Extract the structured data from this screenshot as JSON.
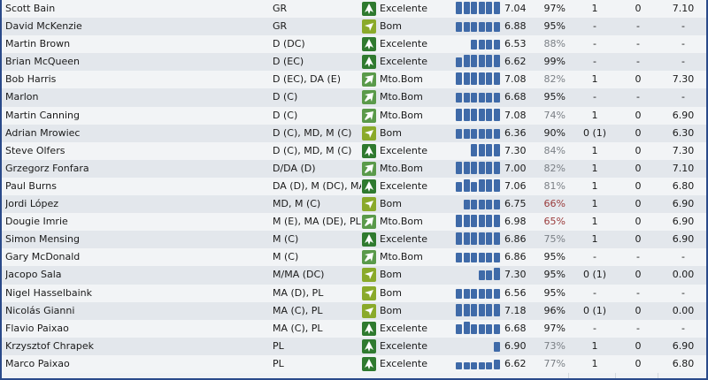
{
  "colors": {
    "excelente": "#2f7a2f",
    "mto_bom": "#5a9a4a",
    "bom": "#8aaa2a",
    "bars": "#3f6aa8",
    "condition_red": "#9a3b3b",
    "condition_grey": "#7a7f85"
  },
  "players": [
    {
      "name": "Scott Bain",
      "position": "GR",
      "status": "Excelente",
      "status_level": "excelente",
      "arrow": "up",
      "bars": [
        4,
        4,
        4,
        4,
        4,
        4
      ],
      "rating": "7.04",
      "condition": "97%",
      "condition_style": "normal",
      "c1": "1",
      "c2": "0",
      "c3": "7.10"
    },
    {
      "name": "David McKenzie",
      "position": "GR",
      "status": "Bom",
      "status_level": "bom",
      "arrow": "down",
      "bars": [
        3,
        3,
        3,
        3,
        3,
        3
      ],
      "rating": "6.88",
      "condition": "95%",
      "condition_style": "normal",
      "c1": "-",
      "c2": "-",
      "c3": "-"
    },
    {
      "name": "Martin Brown",
      "position": "D (DC)",
      "status": "Excelente",
      "status_level": "excelente",
      "arrow": "up",
      "bars": [
        0,
        0,
        3,
        3,
        3,
        3
      ],
      "rating": "6.53",
      "condition": "88%",
      "condition_style": "grey",
      "c1": "-",
      "c2": "-",
      "c3": "-"
    },
    {
      "name": "Brian McQueen",
      "position": "D (EC)",
      "status": "Excelente",
      "status_level": "excelente",
      "arrow": "up",
      "bars": [
        3,
        4,
        4,
        4,
        4,
        4
      ],
      "rating": "6.62",
      "condition": "99%",
      "condition_style": "normal",
      "c1": "-",
      "c2": "-",
      "c3": "-"
    },
    {
      "name": "Bob Harris",
      "position": "D (EC), DA (E)",
      "status": "Mto.Bom",
      "status_level": "mto_bom",
      "arrow": "upright",
      "bars": [
        4,
        4,
        4,
        4,
        4,
        4
      ],
      "rating": "7.08",
      "condition": "82%",
      "condition_style": "grey",
      "c1": "1",
      "c2": "0",
      "c3": "7.30"
    },
    {
      "name": "Marlon",
      "position": "D (C)",
      "status": "Mto.Bom",
      "status_level": "mto_bom",
      "arrow": "upright",
      "bars": [
        3,
        3,
        3,
        3,
        3,
        3
      ],
      "rating": "6.68",
      "condition": "95%",
      "condition_style": "normal",
      "c1": "-",
      "c2": "-",
      "c3": "-"
    },
    {
      "name": "Martin Canning",
      "position": "D (C)",
      "status": "Mto.Bom",
      "status_level": "mto_bom",
      "arrow": "upright",
      "bars": [
        4,
        4,
        4,
        4,
        4,
        4
      ],
      "rating": "7.08",
      "condition": "74%",
      "condition_style": "grey",
      "c1": "1",
      "c2": "0",
      "c3": "6.90"
    },
    {
      "name": "Adrian Mrowiec",
      "position": "D (C), MD, M (C)",
      "status": "Bom",
      "status_level": "bom",
      "arrow": "down",
      "bars": [
        3,
        3,
        3,
        3,
        3,
        3
      ],
      "rating": "6.36",
      "condition": "90%",
      "condition_style": "normal",
      "c1": "0 (1)",
      "c2": "0",
      "c3": "6.30"
    },
    {
      "name": "Steve Olfers",
      "position": "D (C), MD, M (C)",
      "status": "Excelente",
      "status_level": "excelente",
      "arrow": "up",
      "bars": [
        0,
        0,
        4,
        4,
        4,
        4
      ],
      "rating": "7.30",
      "condition": "84%",
      "condition_style": "grey",
      "c1": "1",
      "c2": "0",
      "c3": "7.30"
    },
    {
      "name": "Grzegorz Fonfara",
      "position": "D/DA (D)",
      "status": "Mto.Bom",
      "status_level": "mto_bom",
      "arrow": "upright",
      "bars": [
        4,
        4,
        4,
        4,
        4,
        4
      ],
      "rating": "7.00",
      "condition": "82%",
      "condition_style": "grey",
      "c1": "1",
      "c2": "0",
      "c3": "7.10"
    },
    {
      "name": "Paul Burns",
      "position": "DA (D), M (DC), MA ..",
      "status": "Excelente",
      "status_level": "excelente",
      "arrow": "up",
      "bars": [
        3,
        4,
        3,
        4,
        4,
        4
      ],
      "rating": "7.06",
      "condition": "81%",
      "condition_style": "grey",
      "c1": "1",
      "c2": "0",
      "c3": "6.80"
    },
    {
      "name": "Jordi López",
      "position": "MD, M (C)",
      "status": "Bom",
      "status_level": "bom",
      "arrow": "down",
      "bars": [
        0,
        3,
        3,
        3,
        3,
        3
      ],
      "rating": "6.75",
      "condition": "66%",
      "condition_style": "red",
      "c1": "1",
      "c2": "0",
      "c3": "6.90"
    },
    {
      "name": "Dougie Imrie",
      "position": "M (E), MA (DE), PL",
      "status": "Mto.Bom",
      "status_level": "mto_bom",
      "arrow": "upright",
      "bars": [
        4,
        4,
        4,
        4,
        4,
        4
      ],
      "rating": "6.98",
      "condition": "65%",
      "condition_style": "red",
      "c1": "1",
      "c2": "0",
      "c3": "6.90"
    },
    {
      "name": "Simon Mensing",
      "position": "M (C)",
      "status": "Excelente",
      "status_level": "excelente",
      "arrow": "up",
      "bars": [
        4,
        4,
        4,
        4,
        4,
        4
      ],
      "rating": "6.86",
      "condition": "75%",
      "condition_style": "grey",
      "c1": "1",
      "c2": "0",
      "c3": "6.90"
    },
    {
      "name": "Gary McDonald",
      "position": "M (C)",
      "status": "Mto.Bom",
      "status_level": "mto_bom",
      "arrow": "upright",
      "bars": [
        3,
        3,
        3,
        3,
        3,
        3
      ],
      "rating": "6.86",
      "condition": "95%",
      "condition_style": "normal",
      "c1": "-",
      "c2": "-",
      "c3": "-"
    },
    {
      "name": "Jacopo Sala",
      "position": "M/MA (DC)",
      "status": "Bom",
      "status_level": "bom",
      "arrow": "down",
      "bars": [
        0,
        0,
        0,
        3,
        3,
        4
      ],
      "rating": "7.30",
      "condition": "95%",
      "condition_style": "normal",
      "c1": "0 (1)",
      "c2": "0",
      "c3": "0.00"
    },
    {
      "name": "Nigel Hasselbaink",
      "position": "MA (D), PL",
      "status": "Bom",
      "status_level": "bom",
      "arrow": "down",
      "bars": [
        3,
        3,
        3,
        3,
        3,
        3
      ],
      "rating": "6.56",
      "condition": "95%",
      "condition_style": "normal",
      "c1": "-",
      "c2": "-",
      "c3": "-"
    },
    {
      "name": "Nicolás Gianni",
      "position": "MA (C), PL",
      "status": "Bom",
      "status_level": "bom",
      "arrow": "down",
      "bars": [
        4,
        4,
        4,
        4,
        4,
        4
      ],
      "rating": "7.18",
      "condition": "96%",
      "condition_style": "normal",
      "c1": "0 (1)",
      "c2": "0",
      "c3": "0.00"
    },
    {
      "name": "Flavio Paixao",
      "position": "MA (C), PL",
      "status": "Excelente",
      "status_level": "excelente",
      "arrow": "up",
      "bars": [
        3,
        4,
        3,
        3,
        3,
        3
      ],
      "rating": "6.68",
      "condition": "97%",
      "condition_style": "normal",
      "c1": "-",
      "c2": "-",
      "c3": "-"
    },
    {
      "name": "Krzysztof Chrapek",
      "position": "PL",
      "status": "Excelente",
      "status_level": "excelente",
      "arrow": "up",
      "bars": [
        0,
        0,
        0,
        0,
        0,
        3
      ],
      "rating": "6.90",
      "condition": "73%",
      "condition_style": "grey",
      "c1": "1",
      "c2": "0",
      "c3": "6.90"
    },
    {
      "name": "Marco Paixao",
      "position": "PL",
      "status": "Excelente",
      "status_level": "excelente",
      "arrow": "up",
      "bars": [
        2,
        2,
        2,
        2,
        2,
        3
      ],
      "rating": "6.62",
      "condition": "77%",
      "condition_style": "grey",
      "c1": "1",
      "c2": "0",
      "c3": "6.80"
    }
  ]
}
